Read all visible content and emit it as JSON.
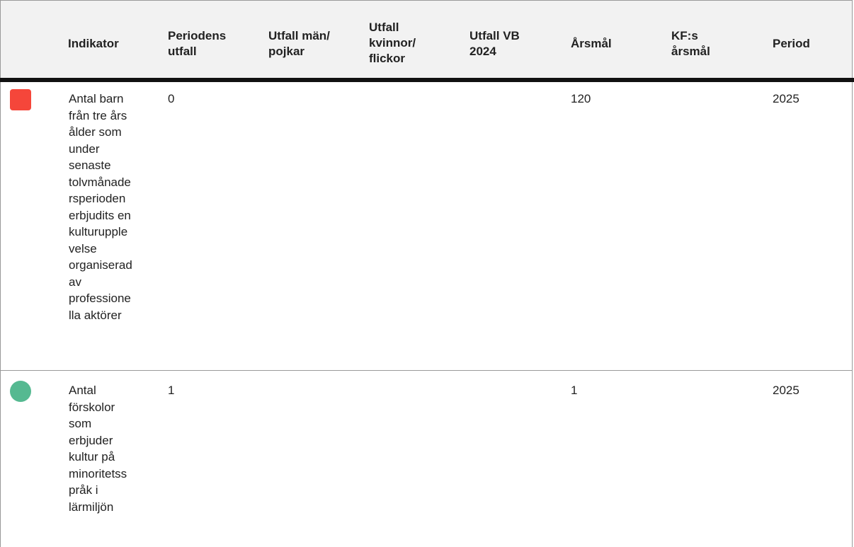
{
  "headers": {
    "indikator": "Indikator",
    "periodens_utfall": [
      "Periodens",
      "utfall"
    ],
    "utfall_man": [
      "Utfall män/",
      "pojkar"
    ],
    "utfall_kvinnor": [
      "Utfall",
      "kvinnor/",
      "flickor"
    ],
    "utfall_vb": [
      "Utfall VB",
      "2024"
    ],
    "arsmal": "Årsmål",
    "kf_arsmal": [
      "KF:s",
      "årsmål"
    ],
    "period": "Period"
  },
  "rows": [
    {
      "status": "red-square",
      "status_color": "#f5463a",
      "indikator_lines": [
        "Antal barn",
        "från tre års",
        "ålder som",
        "under",
        "senaste",
        "tolvmånade",
        "rsperioden",
        "erbjudits en",
        "kulturupple",
        "velse",
        "organiserad",
        "av",
        "professione",
        "lla aktörer"
      ],
      "periodens_utfall": "0",
      "utfall_man": "",
      "utfall_kvinnor": "",
      "utfall_vb": "",
      "arsmal": "120",
      "kf_arsmal": "",
      "period": "2025"
    },
    {
      "status": "green-circle",
      "status_color": "#55b991",
      "indikator_lines": [
        "Antal",
        "förskolor",
        "som",
        "erbjuder",
        "kultur på",
        "minoritetss",
        "pråk i",
        "lärmiljön"
      ],
      "periodens_utfall": "1",
      "utfall_man": "",
      "utfall_kvinnor": "",
      "utfall_vb": "",
      "arsmal": "1",
      "kf_arsmal": "",
      "period": "2025"
    }
  ]
}
